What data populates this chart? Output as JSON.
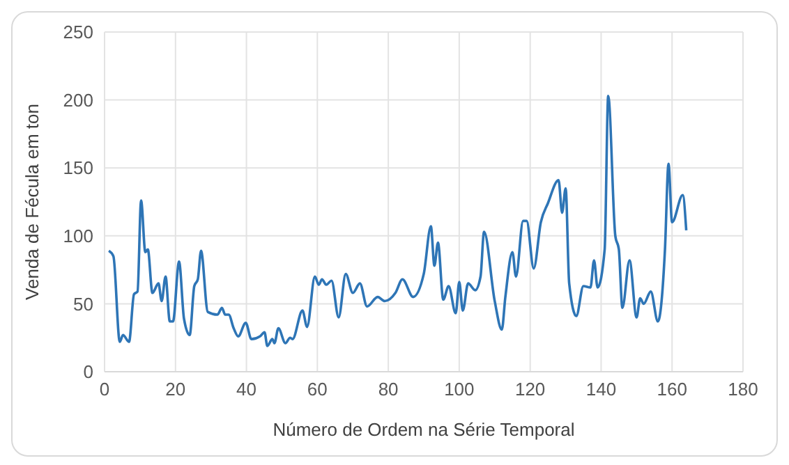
{
  "chart_data": {
    "type": "line",
    "xlabel": "Número de Ordem na Série Temporal",
    "ylabel": "Venda de  Fécula em ton",
    "xlim": [
      0,
      180
    ],
    "xticks": [
      0,
      20,
      40,
      60,
      80,
      100,
      120,
      140,
      160,
      180
    ],
    "ylim": [
      0,
      250
    ],
    "yticks": [
      0,
      50,
      100,
      150,
      200,
      250
    ],
    "grid": true,
    "legend": false,
    "marker": "none",
    "line_style": "solid",
    "series": [
      {
        "color": "#2e75b6",
        "x": [
          1.2,
          2.5,
          4.3,
          5.2,
          6.9,
          8.3,
          9.3,
          10.3,
          11.5,
          12.2,
          13.5,
          15.2,
          16.1,
          17.2,
          18.4,
          19.3,
          21,
          22.4,
          24,
          25.3,
          26.3,
          27.2,
          29.1,
          31.8,
          33.1,
          34,
          35,
          36.4,
          37.7,
          39.8,
          41.4,
          43.8,
          45.1,
          45.9,
          47.3,
          47.9,
          49,
          51,
          52.3,
          53,
          55.8,
          57.1,
          59.3,
          60.4,
          61.3,
          62.5,
          64,
          66,
          68,
          70,
          72,
          74,
          77,
          79,
          82,
          84,
          87,
          90,
          92,
          93,
          94,
          95.5,
          97,
          99,
          100,
          101,
          102.5,
          104.5,
          106,
          107,
          110,
          112,
          113,
          115,
          116,
          118,
          119,
          121,
          123,
          125,
          128,
          129,
          130,
          131,
          133,
          135,
          137,
          138,
          139,
          141,
          142,
          144,
          145,
          146,
          148,
          150,
          151,
          152,
          154,
          156,
          158,
          159,
          160,
          163,
          164
        ],
        "values": [
          89,
          85,
          22,
          27,
          22,
          57,
          59,
          126,
          88,
          90,
          58,
          65,
          52,
          70,
          37,
          37,
          81,
          39,
          27,
          63,
          68,
          89,
          44,
          42,
          47,
          42,
          42,
          32,
          26,
          36,
          24,
          26,
          29,
          19,
          24,
          21,
          32,
          21,
          25,
          24,
          45,
          33,
          70,
          64,
          68,
          64,
          67,
          40,
          72,
          58,
          65,
          48,
          55,
          52,
          58,
          68,
          55,
          72,
          107,
          78,
          95,
          53,
          63,
          43,
          66,
          45,
          65,
          60,
          70,
          103,
          52,
          31,
          55,
          88,
          70,
          111,
          111,
          76,
          110,
          124,
          141,
          117,
          135,
          65,
          41,
          63,
          62,
          82,
          62,
          90,
          203,
          100,
          90,
          47,
          82,
          40,
          54,
          50,
          59,
          37,
          90,
          153,
          110,
          130,
          104
        ]
      }
    ]
  }
}
